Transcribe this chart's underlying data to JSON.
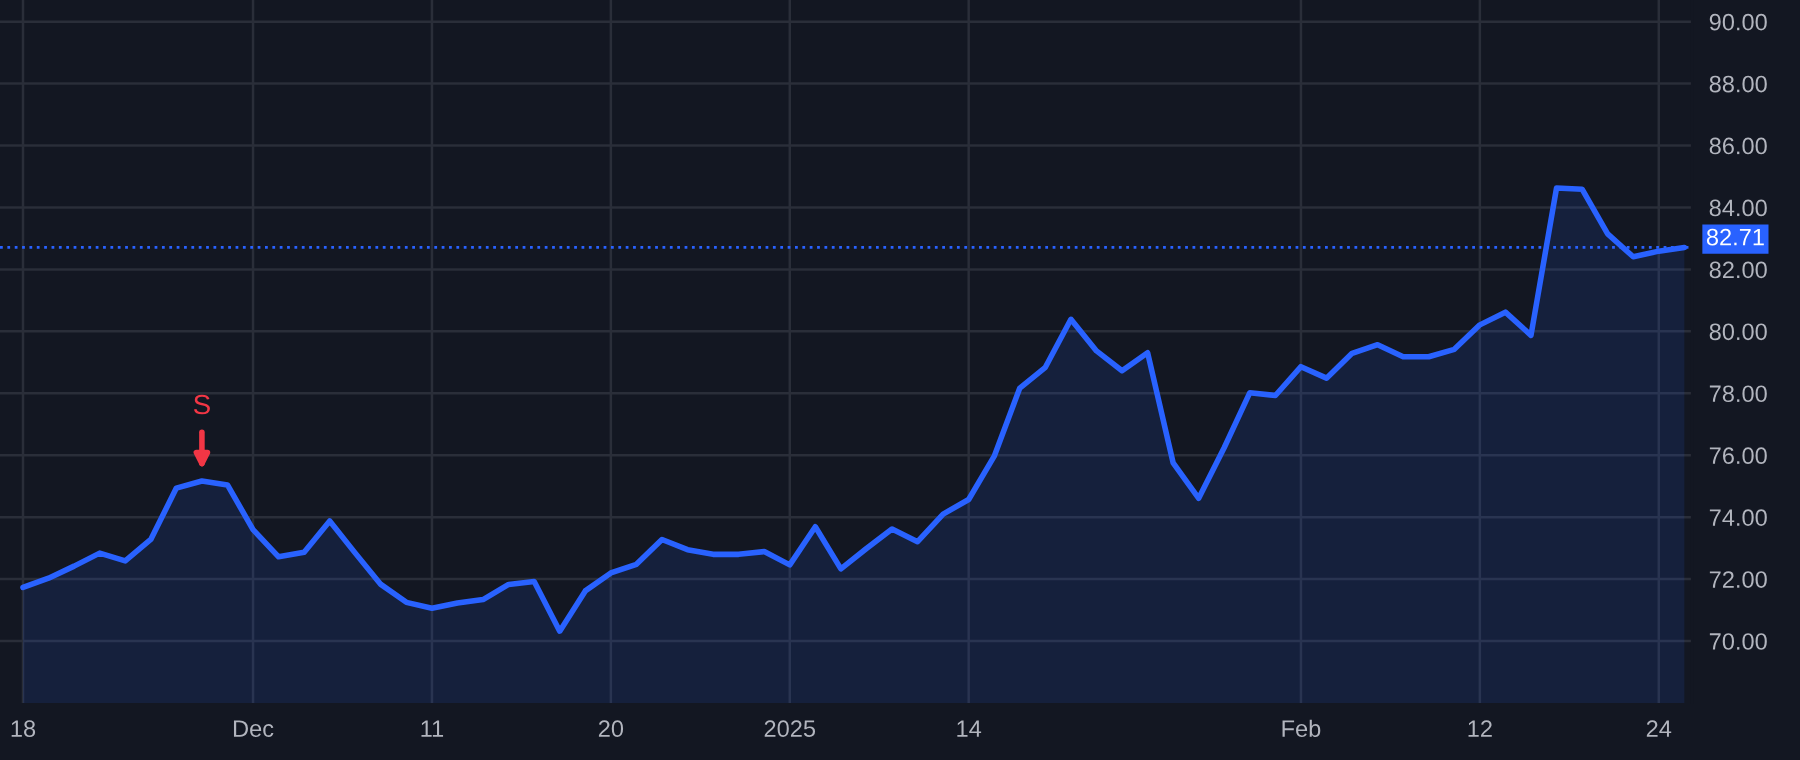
{
  "chart_data": {
    "type": "area",
    "categories": [
      "18",
      null,
      null,
      null,
      null,
      null,
      null,
      null,
      null,
      "Dec",
      null,
      null,
      null,
      null,
      null,
      null,
      "11",
      null,
      null,
      null,
      null,
      null,
      null,
      "20",
      null,
      null,
      null,
      null,
      null,
      null,
      "2025",
      null,
      null,
      null,
      null,
      null,
      null,
      "14",
      null,
      null,
      null,
      null,
      null,
      null,
      null,
      null,
      null,
      null,
      null,
      null,
      "Feb",
      null,
      null,
      null,
      null,
      null,
      null,
      "12",
      null,
      null,
      null,
      null,
      null,
      null,
      "24",
      null
    ],
    "series": [
      {
        "color": "#2962ff",
        "values": [
          71.73,
          72.03,
          72.42,
          72.84,
          72.59,
          73.28,
          74.94,
          75.17,
          75.04,
          73.6,
          72.72,
          72.87,
          73.88,
          72.84,
          71.83,
          71.25,
          71.06,
          71.23,
          71.34,
          71.83,
          71.92,
          70.32,
          71.62,
          72.2,
          72.48,
          73.28,
          72.95,
          72.8,
          72.8,
          72.89,
          72.46,
          73.69,
          72.33,
          72.99,
          73.62,
          73.21,
          74.1,
          74.57,
          75.97,
          78.17,
          78.84,
          80.39,
          79.37,
          78.73,
          79.31,
          75.75,
          74.61,
          76.25,
          78.02,
          77.93,
          78.86,
          78.49,
          79.29,
          79.57,
          79.18,
          79.18,
          79.42,
          80.21,
          80.62,
          79.87,
          84.63,
          84.59,
          83.15,
          82.41,
          82.59,
          82.71
        ]
      }
    ],
    "ylim": [
      68,
      90.7
    ],
    "yticks": [
      {
        "value": 70,
        "label": "70.00"
      },
      {
        "value": 72,
        "label": "72.00"
      },
      {
        "value": 74,
        "label": "74.00"
      },
      {
        "value": 76,
        "label": "76.00"
      },
      {
        "value": 78,
        "label": "78.00"
      },
      {
        "value": 80,
        "label": "80.00"
      },
      {
        "value": 82,
        "label": "82.00"
      },
      {
        "value": 84,
        "label": "84.00"
      },
      {
        "value": 86,
        "label": "86.00"
      },
      {
        "value": 88,
        "label": "88.00"
      },
      {
        "value": 90,
        "label": "90.00"
      }
    ],
    "ref_lines": [
      {
        "axis": "y",
        "value": 82.71,
        "label": "82.71",
        "color": "#2962ff",
        "line_style": "dotted"
      }
    ],
    "annotations": [
      {
        "text": "S",
        "y": 75.17
      }
    ],
    "grid": true
  }
}
